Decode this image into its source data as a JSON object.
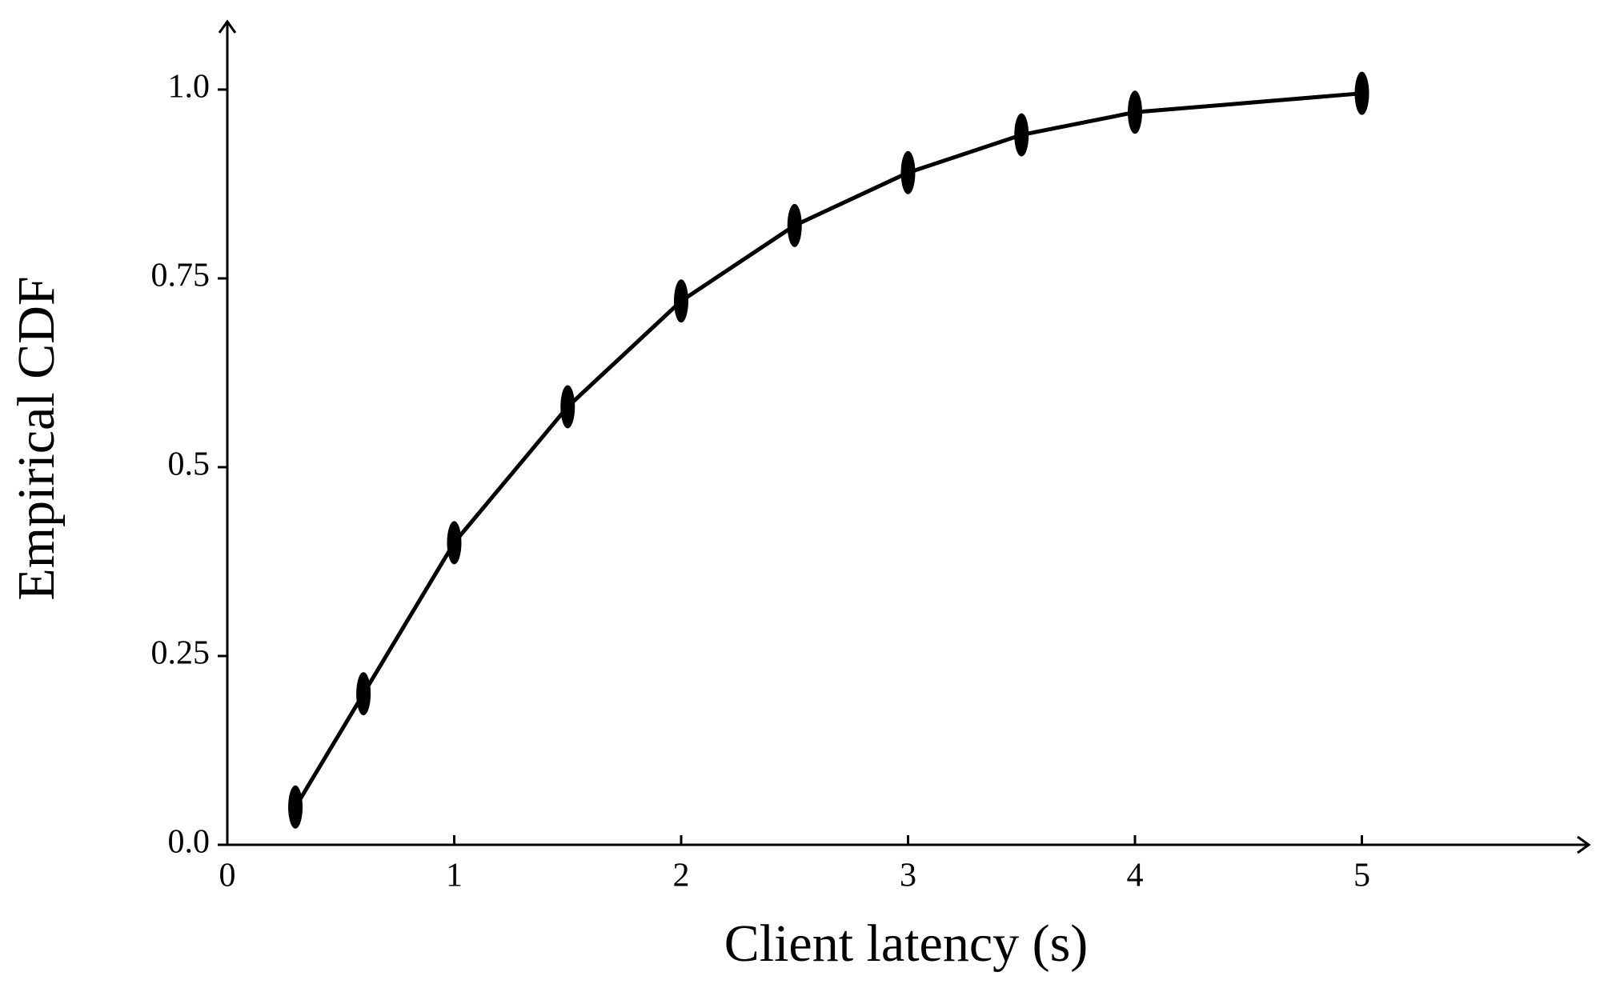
{
  "chart_data": {
    "type": "line",
    "xlabel": "Client latency (s)",
    "ylabel": "Empirical CDF",
    "x": [
      0.3,
      0.6,
      1,
      1.5,
      2,
      2.5,
      3,
      3.5,
      4,
      5
    ],
    "series": [
      {
        "color": "#000000",
        "values": [
          0.05,
          0.2,
          0.4,
          0.58,
          0.72,
          0.82,
          0.89,
          0.94,
          0.97,
          0.995
        ]
      }
    ],
    "xlim": [
      0,
      6
    ],
    "ylim": [
      0,
      1.09
    ],
    "xticks": [
      0,
      1,
      2,
      3,
      4,
      5
    ],
    "yticks": [
      {
        "value": 0,
        "label": "0.0"
      },
      0.25,
      0.5,
      0.75,
      {
        "value": 1,
        "label": "1.0"
      }
    ],
    "grid": false
  }
}
